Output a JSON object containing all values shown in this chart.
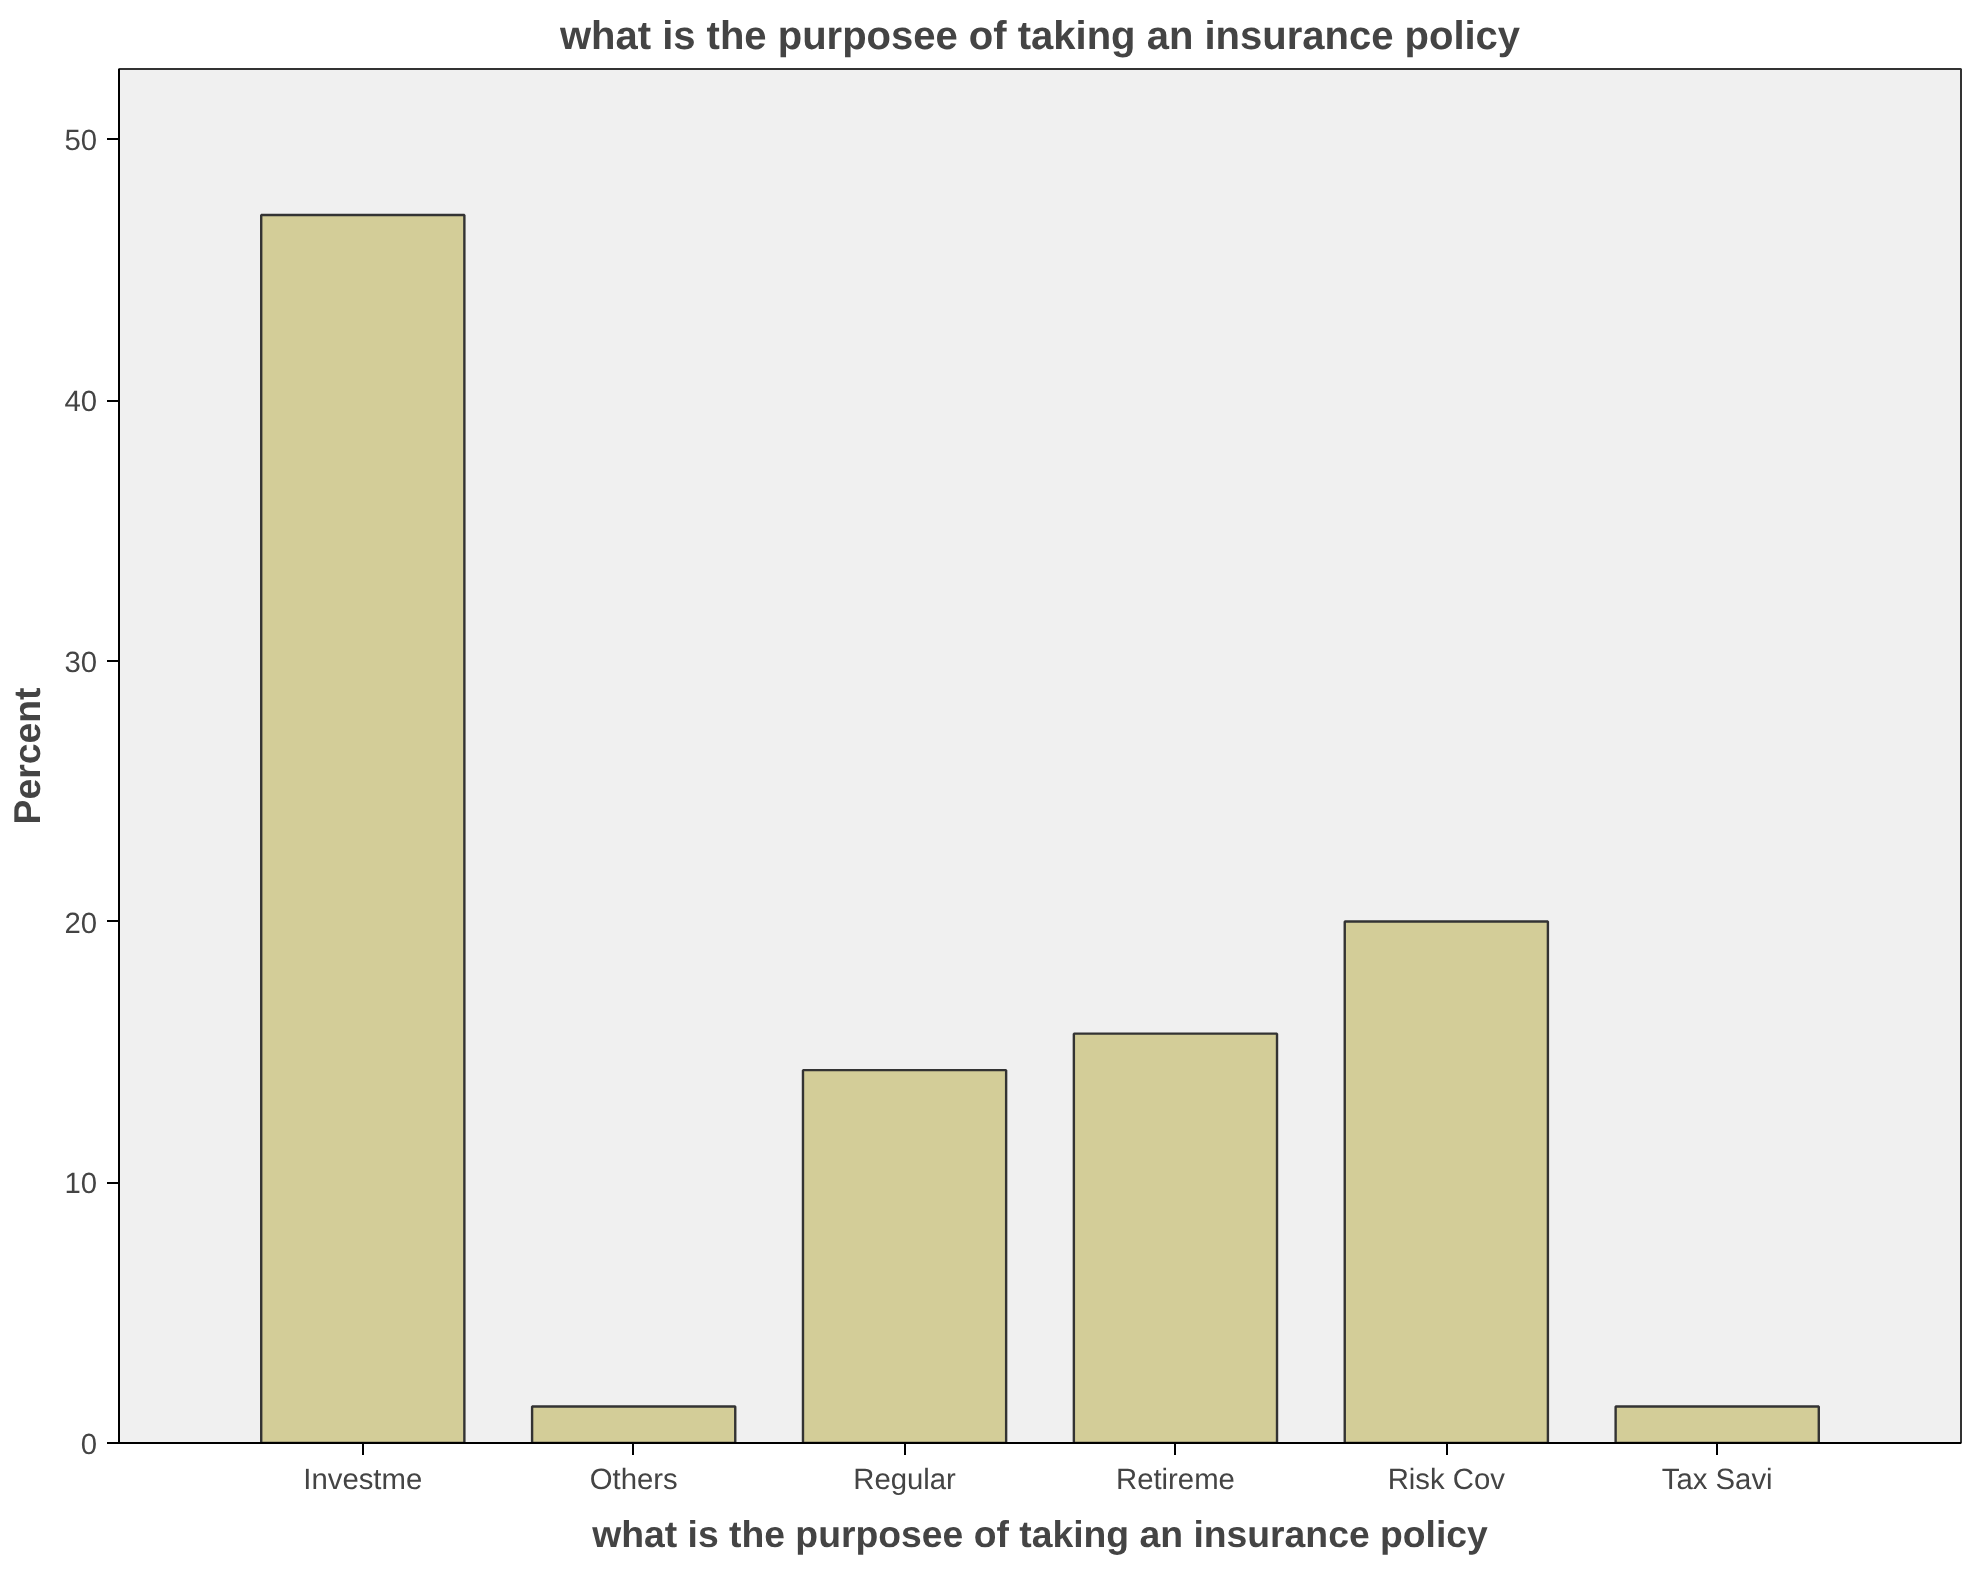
{
  "chart_data": {
    "type": "bar",
    "title": "what is the purposee of taking an insurance policy",
    "xlabel": "what is the purposee of taking an insurance policy",
    "ylabel": "Percent",
    "categories": [
      "Investme",
      "Others",
      "Regular",
      "Retireme",
      "Risk Cov",
      "Tax Savi"
    ],
    "values": [
      47.1,
      1.4,
      14.3,
      15.7,
      20.0,
      1.4
    ],
    "color": "#d3cd98",
    "ylim": [
      0,
      52.7
    ],
    "yticks": [
      0,
      10,
      20,
      30,
      40,
      50
    ],
    "grid": false
  }
}
